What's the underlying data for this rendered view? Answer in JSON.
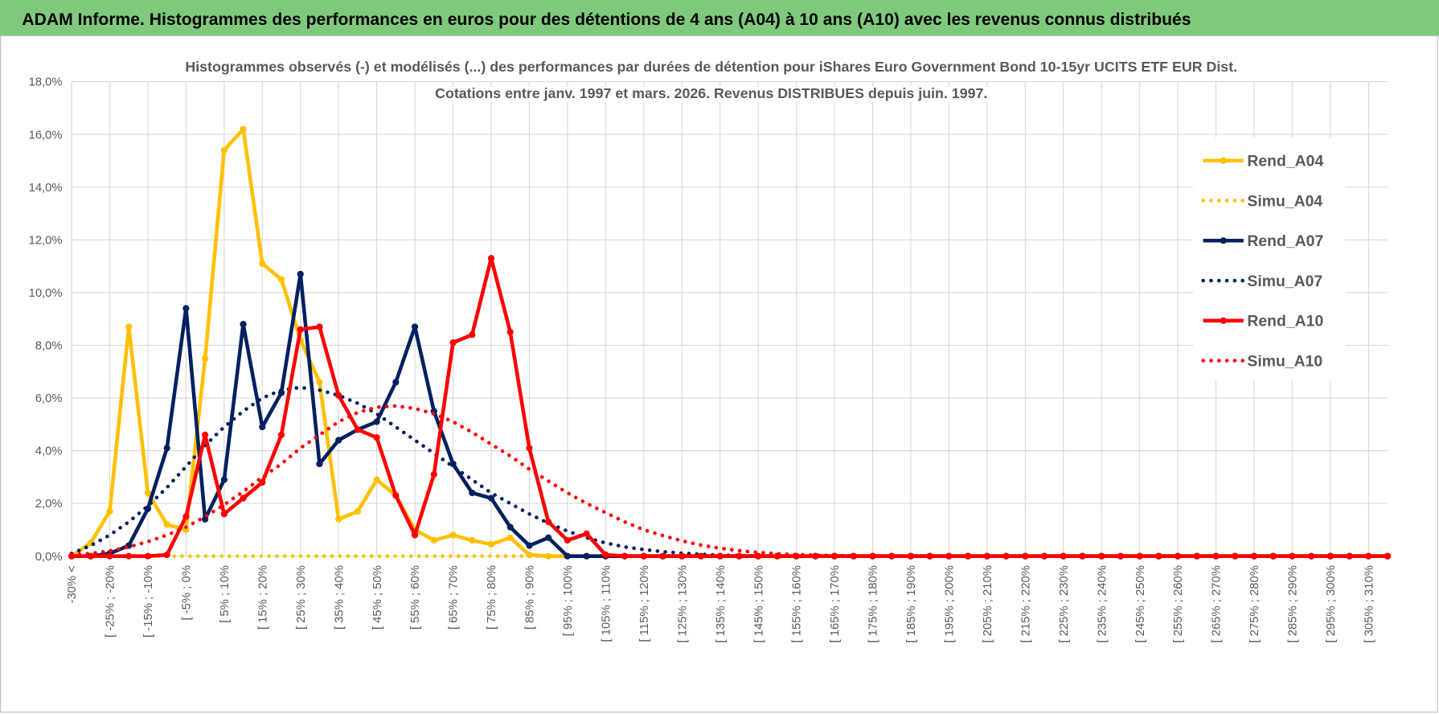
{
  "header": {
    "title": "ADAM Informe. Histogrammes des performances en euros pour des détentions de 4 ans (A04) à 10 ans (A10) avec les revenus connus distribués"
  },
  "chart_data": {
    "type": "line",
    "title": "Histogrammes observés (-) et modélisés (...) des performances par durées de détention pour iShares Euro Government Bond 10-15yr UCITS ETF EUR Dist.",
    "subtitle": "Cotations entre janv. 1997 et mars. 2026.  Revenus DISTRIBUES depuis juin. 1997.",
    "categories": [
      "-30% <",
      null,
      "[ -25% ; -20%",
      null,
      "[ -15% ; -10%",
      null,
      "[ -5% ; 0%",
      null,
      "[ 5% ; 10%",
      null,
      "[ 15% ; 20%",
      null,
      "[ 25% ; 30%",
      null,
      "[ 35% ; 40%",
      null,
      "[ 45% ; 50%",
      null,
      "[ 55% ; 60%",
      null,
      "[ 65% ; 70%",
      null,
      "[ 75% ; 80%",
      null,
      "[ 85% ; 90%",
      null,
      "[ 95% ; 100%",
      null,
      "[ 105% ; 110%",
      null,
      "[ 115% ; 120%",
      null,
      "[ 125% ; 130%",
      null,
      "[ 135% ; 140%",
      null,
      "[ 145% ; 150%",
      null,
      "[ 155% ; 160%",
      null,
      "[ 165% ; 170%",
      null,
      "[ 175% ; 180%",
      null,
      "[ 185% ; 190%",
      null,
      "[ 195% ; 200%",
      null,
      "[ 205% ; 210%",
      null,
      "[ 215% ; 220%",
      null,
      "[ 225% ; 230%",
      null,
      "[ 235% ; 240%",
      null,
      "[ 245% ; 250%",
      null,
      "[ 255% ; 260%",
      null,
      "[ 265% ; 270%",
      null,
      "[ 275% ; 280%",
      null,
      "[ 285% ; 290%",
      null,
      "[ 295% ; 300%",
      null,
      "[ 305% ; 310%",
      null
    ],
    "series": [
      {
        "name": "Rend_A04",
        "color": "#ffc000",
        "dash": "solid",
        "marker": true,
        "values": [
          0,
          0.5,
          1.7,
          8.7,
          2.4,
          1.2,
          1.0,
          7.5,
          15.4,
          16.2,
          11.1,
          10.5,
          8.2,
          6.6,
          1.4,
          1.7,
          2.9,
          2.3,
          1.0,
          0.6,
          0.8,
          0.6,
          0.45,
          0.7,
          0.05,
          0,
          0,
          0,
          0,
          0,
          0,
          0,
          0,
          0,
          0,
          0,
          0,
          0,
          0,
          0,
          0,
          0,
          0,
          0,
          0,
          0,
          0,
          0,
          0,
          0,
          0,
          0,
          0,
          0,
          0,
          0,
          0,
          0,
          0,
          0,
          0,
          0,
          0,
          0,
          0,
          0,
          0,
          0,
          0,
          0
        ]
      },
      {
        "name": "Simu_A04",
        "color": "#ffc000",
        "dash": "dotted",
        "marker": false,
        "values": [
          0,
          0,
          0,
          0,
          0,
          0,
          0,
          0,
          0,
          0,
          0,
          0,
          0,
          0,
          0,
          0,
          0,
          0,
          0,
          0,
          0,
          0,
          0,
          0,
          0,
          0,
          0,
          0,
          0,
          0,
          0,
          0,
          0,
          0,
          0,
          0,
          0,
          0,
          0,
          0,
          0,
          0,
          0,
          0,
          0,
          0,
          0,
          0,
          0,
          0,
          0,
          0,
          0,
          0,
          0,
          0,
          0,
          0,
          0,
          0,
          0,
          0,
          0,
          0,
          0,
          0,
          0,
          0,
          0,
          0
        ]
      },
      {
        "name": "Rend_A07",
        "color": "#002060",
        "dash": "solid",
        "marker": true,
        "values": [
          0,
          0,
          0.1,
          0.4,
          1.8,
          4.1,
          9.4,
          1.4,
          2.9,
          8.8,
          4.9,
          6.2,
          10.7,
          3.5,
          4.4,
          4.8,
          5.1,
          6.6,
          8.7,
          5.5,
          3.5,
          2.4,
          2.2,
          1.1,
          0.4,
          0.7,
          0,
          0,
          0,
          0,
          0,
          0,
          0,
          0,
          0,
          0,
          0,
          0,
          0,
          0,
          0,
          0,
          0,
          0,
          0,
          0,
          0,
          0,
          0,
          0,
          0,
          0,
          0,
          0,
          0,
          0,
          0,
          0,
          0,
          0,
          0,
          0,
          0,
          0,
          0,
          0,
          0,
          0,
          0,
          0
        ]
      },
      {
        "name": "Simu_A07",
        "color": "#002060",
        "dash": "dotted",
        "marker": false,
        "values": [
          0.1,
          0.4,
          0.8,
          1.3,
          1.9,
          2.6,
          3.4,
          4.2,
          4.9,
          5.5,
          6.0,
          6.3,
          6.4,
          6.3,
          6.1,
          5.8,
          5.4,
          4.9,
          4.4,
          3.9,
          3.4,
          2.9,
          2.4,
          2.0,
          1.6,
          1.25,
          0.95,
          0.7,
          0.5,
          0.35,
          0.25,
          0.17,
          0.11,
          0.07,
          0.04,
          0.02,
          0.01,
          0,
          0,
          0,
          0,
          0,
          0,
          0,
          0,
          0,
          0,
          0,
          0,
          0,
          0,
          0,
          0,
          0,
          0,
          0,
          0,
          0,
          0,
          0,
          0,
          0,
          0,
          0,
          0,
          0,
          0,
          0,
          0,
          0
        ]
      },
      {
        "name": "Rend_A10",
        "color": "#ff0000",
        "dash": "solid",
        "marker": true,
        "values": [
          0,
          0,
          0,
          0,
          0,
          0.05,
          1.5,
          4.6,
          1.6,
          2.2,
          2.8,
          4.6,
          8.6,
          8.7,
          6.1,
          4.8,
          4.5,
          2.3,
          0.8,
          3.1,
          8.1,
          8.4,
          11.3,
          8.5,
          4.1,
          1.3,
          0.6,
          0.85,
          0.05,
          0,
          0,
          0,
          0,
          0,
          0,
          0,
          0,
          0,
          0,
          0,
          0,
          0,
          0,
          0,
          0,
          0,
          0,
          0,
          0,
          0,
          0,
          0,
          0,
          0,
          0,
          0,
          0,
          0,
          0,
          0,
          0,
          0,
          0,
          0,
          0,
          0,
          0,
          0,
          0,
          0
        ]
      },
      {
        "name": "Simu_A10",
        "color": "#ff0000",
        "dash": "dotted",
        "marker": false,
        "values": [
          0.05,
          0.1,
          0.2,
          0.35,
          0.55,
          0.8,
          1.1,
          1.5,
          1.95,
          2.45,
          3.0,
          3.5,
          4.1,
          4.6,
          5.1,
          5.45,
          5.65,
          5.7,
          5.6,
          5.4,
          5.1,
          4.7,
          4.25,
          3.8,
          3.3,
          2.85,
          2.4,
          2.0,
          1.65,
          1.3,
          1.0,
          0.78,
          0.58,
          0.42,
          0.3,
          0.21,
          0.14,
          0.09,
          0.06,
          0.04,
          0.02,
          0.01,
          0,
          0,
          0,
          0,
          0,
          0,
          0,
          0,
          0,
          0,
          0,
          0,
          0,
          0,
          0,
          0,
          0,
          0,
          0,
          0,
          0,
          0,
          0,
          0,
          0,
          0,
          0,
          0
        ]
      }
    ],
    "ylim": [
      0,
      18
    ],
    "yticks": [
      {
        "value": 0,
        "label": "0,0%"
      },
      {
        "value": 2,
        "label": "2,0%"
      },
      {
        "value": 4,
        "label": "4,0%"
      },
      {
        "value": 6,
        "label": "6,0%"
      },
      {
        "value": 8,
        "label": "8,0%"
      },
      {
        "value": 10,
        "label": "10,0%"
      },
      {
        "value": 12,
        "label": "12,0%"
      },
      {
        "value": 14,
        "label": "14,0%"
      },
      {
        "value": 16,
        "label": "16,0%"
      },
      {
        "value": 18,
        "label": "18,0%"
      }
    ],
    "grid": true,
    "xgrid": true,
    "legend": "right"
  }
}
